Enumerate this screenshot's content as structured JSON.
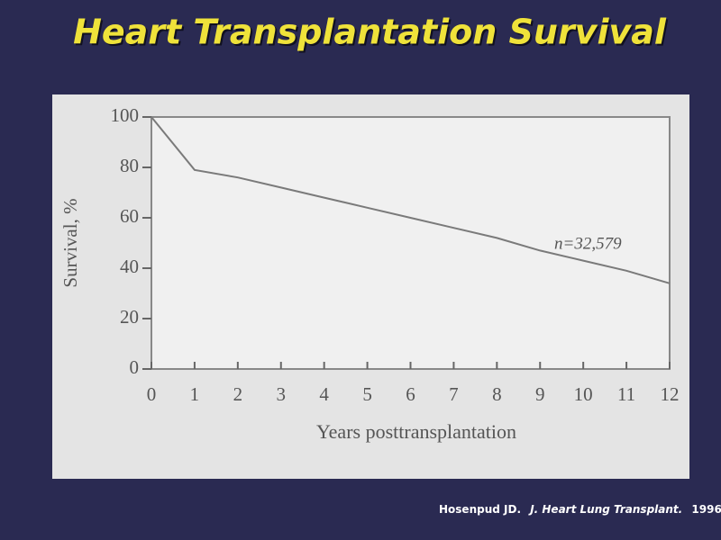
{
  "title": "Heart Transplantation Survival",
  "citation": {
    "author": "Hosenpud JD.",
    "journal": "J. Heart Lung Transplant.",
    "year": "1996"
  },
  "chart_data": {
    "type": "line",
    "x": [
      0,
      1,
      2,
      3,
      4,
      5,
      6,
      7,
      8,
      9,
      10,
      11,
      12
    ],
    "values": [
      100,
      79,
      76,
      72,
      68,
      64,
      60,
      56,
      52,
      47,
      43,
      39,
      34
    ],
    "color": "#7a7a7a",
    "xlim": [
      0,
      12
    ],
    "xticks": [
      0,
      1,
      2,
      3,
      4,
      5,
      6,
      7,
      8,
      9,
      10,
      11,
      12
    ],
    "ylim": [
      0,
      100
    ],
    "yticks": [
      0,
      20,
      40,
      60,
      80,
      100
    ],
    "x_label": "Years posttransplantation",
    "y_label": "Survival, %",
    "annotation": "n=32,579"
  }
}
